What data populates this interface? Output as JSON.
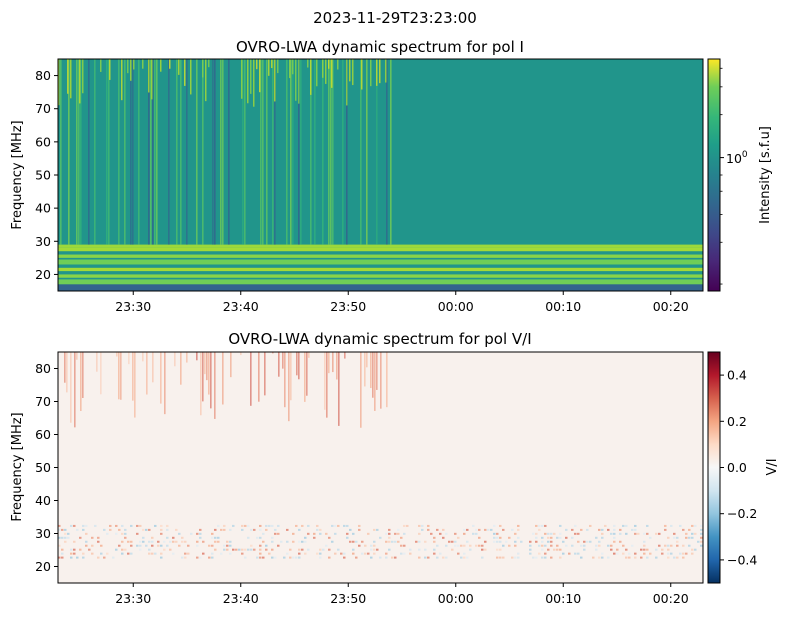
{
  "figure": {
    "suptitle": "2023-11-29T23:23:00"
  },
  "chart_data": [
    {
      "type": "heatmap",
      "title": "OVRO-LWA dynamic spectrum for pol I",
      "ylabel": "Frequency [MHz]",
      "xlabel": "",
      "x_tick_labels": [
        "23:30",
        "23:40",
        "23:50",
        "00:00",
        "00:10",
        "00:20"
      ],
      "x_tick_minutes": [
        7,
        17,
        27,
        37,
        47,
        57
      ],
      "x_range_minutes": [
        0,
        60
      ],
      "x_start_label": "23:23",
      "y_ticks": [
        20,
        30,
        40,
        50,
        60,
        70,
        80
      ],
      "ylim": [
        15,
        85
      ],
      "colormap": "viridis",
      "colorbar": {
        "label": "Intensity [s.f.u]",
        "scale": "log",
        "tick_label_base": "10",
        "tick_label_exp": "0",
        "major_fraction": 0.575,
        "minor_fractions": [
          0.03,
          0.21,
          0.33,
          0.43,
          0.5,
          0.76,
          0.88,
          0.96
        ]
      },
      "description_bands": {
        "background_level": 0.52,
        "bursty_end_minute": 31,
        "bright_bands_mhz": [
          [
            17,
            18.5
          ],
          [
            19,
            20
          ],
          [
            21,
            22
          ],
          [
            23,
            24.5
          ],
          [
            25,
            26
          ],
          [
            27,
            28
          ]
        ],
        "dark_band_mhz": [
          15,
          17
        ]
      }
    },
    {
      "type": "heatmap",
      "title": "OVRO-LWA dynamic spectrum for pol V/I",
      "ylabel": "Frequency [MHz]",
      "xlabel": "",
      "x_tick_labels": [
        "23:30",
        "23:40",
        "23:50",
        "00:00",
        "00:10",
        "00:20"
      ],
      "x_tick_minutes": [
        7,
        17,
        27,
        37,
        47,
        57
      ],
      "x_range_minutes": [
        0,
        60
      ],
      "y_ticks": [
        20,
        30,
        40,
        50,
        60,
        70,
        80
      ],
      "ylim": [
        15,
        85
      ],
      "colormap": "RdBu_r",
      "colorbar": {
        "label": "V/I",
        "scale": "linear",
        "ticks": [
          0.4,
          0.2,
          0.0,
          -0.2,
          -0.4
        ],
        "tick_labels": [
          "0.4",
          "0.2",
          "0.0",
          "−0.2",
          "−0.4"
        ],
        "range": [
          -0.5,
          0.5
        ]
      }
    }
  ]
}
